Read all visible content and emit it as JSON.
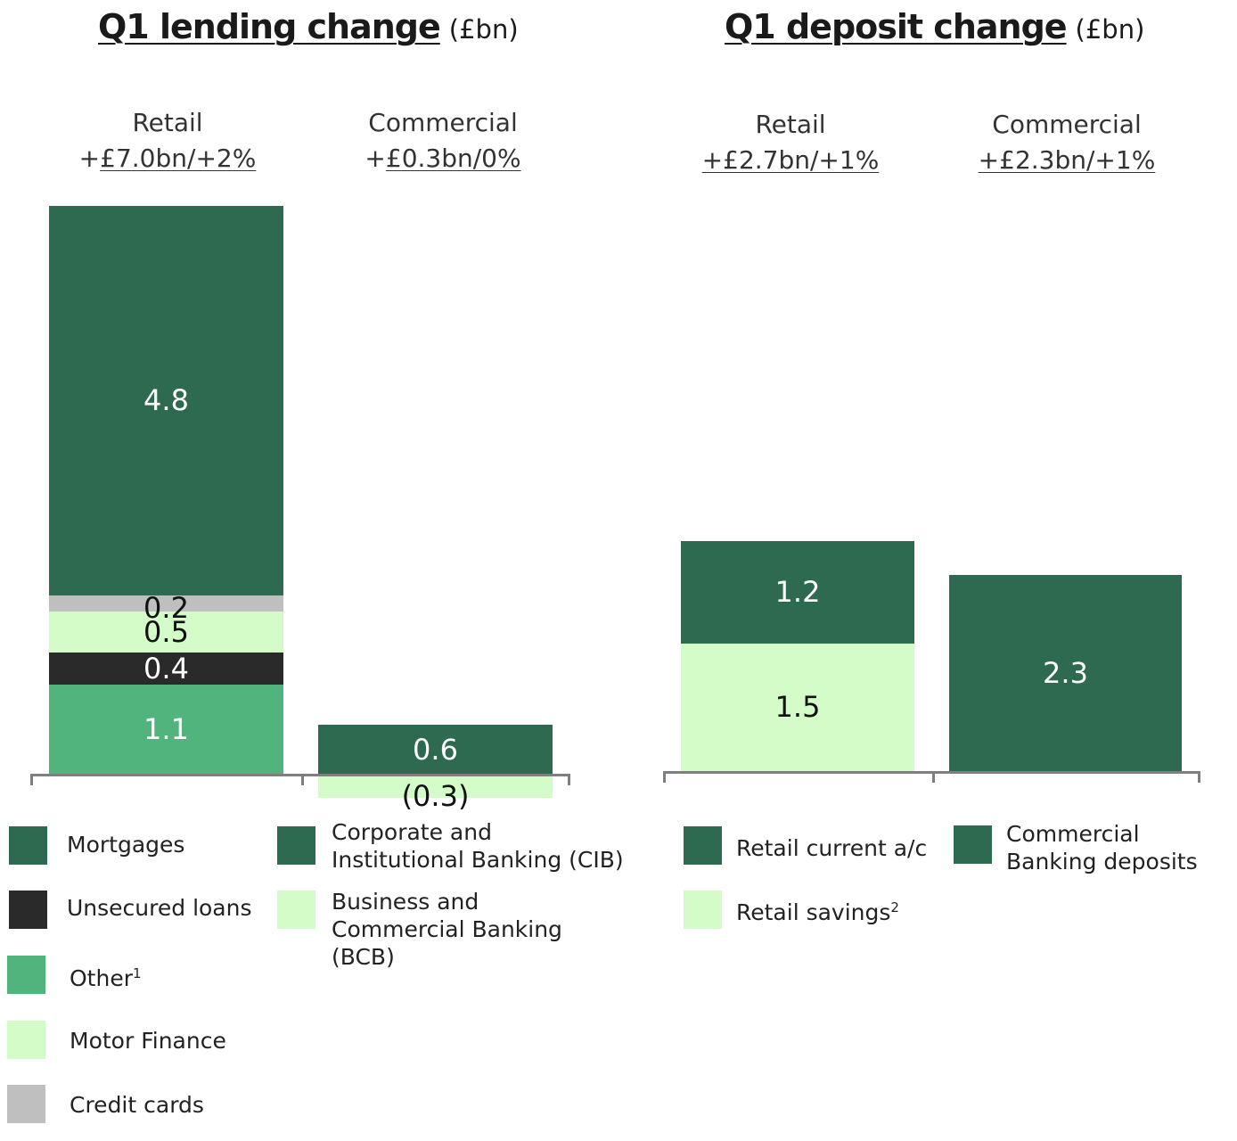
{
  "lending": {
    "title": "Q1 lending change",
    "unit": "(£bn)",
    "columns": [
      {
        "name": "Retail",
        "change_prefix": "+",
        "change": "£7.0bn/+2%"
      },
      {
        "name": "Commercial",
        "change_prefix": "+",
        "change": "£0.3bn/0%"
      }
    ],
    "legend": [
      {
        "label": "Mortgages",
        "color": "#2d6a4f"
      },
      {
        "label": "Unsecured loans",
        "color": "#2a2a2a"
      },
      {
        "label": "Other",
        "sup": "1",
        "color": "#52b47d"
      },
      {
        "label": "Motor Finance",
        "color": "#d3fcc9"
      },
      {
        "label": "Credit cards",
        "color": "#bfbfbf"
      },
      {
        "label": "Corporate and Institutional Banking (CIB)",
        "color": "#2d6a4f"
      },
      {
        "label": "Business and Commercial Banking (BCB)",
        "color": "#d3fcc9"
      }
    ]
  },
  "deposits": {
    "title": "Q1 deposit change",
    "unit": "(£bn)",
    "columns": [
      {
        "name": "Retail",
        "change": "+£2.7bn/+1%"
      },
      {
        "name": "Commercial",
        "change": "+£2.3bn/+1%"
      }
    ],
    "legend": [
      {
        "label": "Retail current a/c",
        "color": "#2d6a4f"
      },
      {
        "label": "Retail savings",
        "sup": "2",
        "color": "#d3fcc9"
      },
      {
        "label": "Commercial Banking deposits",
        "color": "#2d6a4f"
      }
    ]
  },
  "chart_data": [
    {
      "type": "bar",
      "stacked": true,
      "title": "Q1 lending change",
      "ylabel": "(£bn)",
      "categories": [
        "Retail",
        "Commercial"
      ],
      "series": [
        {
          "name": "Other",
          "values": [
            1.1,
            null
          ],
          "labels": [
            "1.1",
            ""
          ],
          "color": "#52b47d",
          "label_color": "#ffffff"
        },
        {
          "name": "Unsecured loans",
          "values": [
            0.4,
            null
          ],
          "labels": [
            "0.4",
            ""
          ],
          "color": "#2a2a2a",
          "label_color": "#ffffff"
        },
        {
          "name": "Motor Finance",
          "values": [
            0.5,
            null
          ],
          "labels": [
            "0.5",
            ""
          ],
          "color": "#d3fcc9",
          "label_color": "#111111"
        },
        {
          "name": "Credit cards",
          "values": [
            0.2,
            null
          ],
          "labels": [
            "0.2",
            ""
          ],
          "color": "#bfbfbf",
          "label_color": "#111111"
        },
        {
          "name": "Mortgages",
          "values": [
            4.8,
            null
          ],
          "labels": [
            "4.8",
            ""
          ],
          "color": "#2d6a4f",
          "label_color": "#ffffff"
        },
        {
          "name": "Corporate and Institutional Banking (CIB)",
          "values": [
            null,
            0.6
          ],
          "labels": [
            "",
            "0.6"
          ],
          "color": "#2d6a4f",
          "label_color": "#ffffff"
        },
        {
          "name": "Business and Commercial Banking (BCB)",
          "values": [
            null,
            -0.3
          ],
          "labels": [
            "",
            "(0.3)"
          ],
          "color": "#d3fcc9",
          "label_color": "#111111"
        }
      ],
      "totals": [
        "+£7.0bn/+2%",
        "+£0.3bn/0%"
      ]
    },
    {
      "type": "bar",
      "stacked": true,
      "title": "Q1 deposit change",
      "ylabel": "(£bn)",
      "categories": [
        "Retail",
        "Commercial"
      ],
      "series": [
        {
          "name": "Retail savings",
          "values": [
            1.5,
            null
          ],
          "labels": [
            "1.5",
            ""
          ],
          "color": "#d3fcc9",
          "label_color": "#111111"
        },
        {
          "name": "Retail current a/c",
          "values": [
            1.2,
            null
          ],
          "labels": [
            "1.2",
            ""
          ],
          "color": "#2d6a4f",
          "label_color": "#ffffff"
        },
        {
          "name": "Commercial Banking deposits",
          "values": [
            null,
            2.3
          ],
          "labels": [
            "",
            "2.3"
          ],
          "color": "#2d6a4f",
          "label_color": "#ffffff"
        }
      ],
      "totals": [
        "+£2.7bn/+1%",
        "+£2.3bn/+1%"
      ]
    }
  ]
}
